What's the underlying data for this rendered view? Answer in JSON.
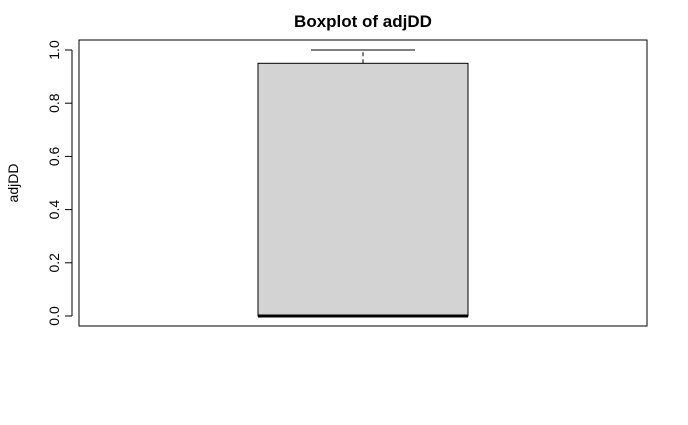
{
  "chart_data": {
    "type": "boxplot",
    "title": "Boxplot of adjDD",
    "xlabel": "",
    "ylabel": "adjDD",
    "ylim": [
      0,
      1
    ],
    "yticks": [
      "0.0",
      "0.2",
      "0.4",
      "0.6",
      "0.8",
      "1.0"
    ],
    "series": [
      {
        "min": 0.0,
        "q1": 0.0,
        "median": 0.0,
        "q3": 0.95,
        "max": 1.0
      }
    ],
    "grid": false,
    "box_fill": "#d3d3d3",
    "line_color": "#000000"
  }
}
